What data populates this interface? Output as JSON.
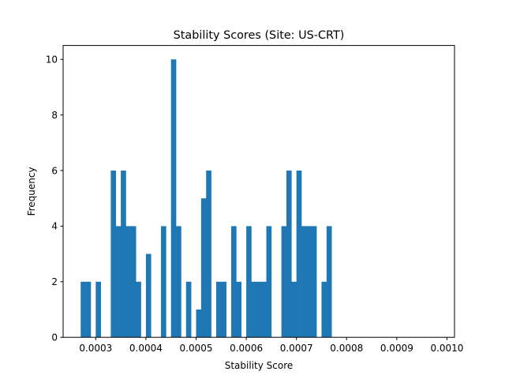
{
  "chart_data": {
    "type": "bar",
    "subtype": "histogram",
    "title": "Stability Scores (Site: US-CRT)",
    "xlabel": "Stability Score",
    "ylabel": "Frequency",
    "xlim": [
      0.000235,
      0.001015
    ],
    "ylim": [
      0,
      10.5
    ],
    "bin_width": 1e-05,
    "bin_start": 0.00027,
    "bar_color": "#1f77b4",
    "grid": false,
    "x_ticks": [
      0.0003,
      0.0004,
      0.0005,
      0.0006,
      0.0007,
      0.0008,
      0.0009,
      0.001
    ],
    "x_tick_labels": [
      "0.0003",
      "0.0004",
      "0.0005",
      "0.0006",
      "0.0007",
      "0.0008",
      "0.0009",
      "0.0010"
    ],
    "y_ticks": [
      0,
      2,
      4,
      6,
      8,
      10
    ],
    "y_tick_labels": [
      "0",
      "2",
      "4",
      "6",
      "8",
      "10"
    ],
    "values": [
      2,
      2,
      0,
      2,
      0,
      0,
      6,
      4,
      6,
      4,
      4,
      2,
      0,
      3,
      0,
      0,
      4,
      0,
      10,
      4,
      0,
      2,
      0,
      1,
      5,
      6,
      0,
      2,
      2,
      0,
      4,
      2,
      0,
      4,
      2,
      2,
      2,
      4,
      0,
      0,
      4,
      6,
      2,
      6,
      4,
      4,
      4,
      0,
      2,
      4
    ]
  }
}
